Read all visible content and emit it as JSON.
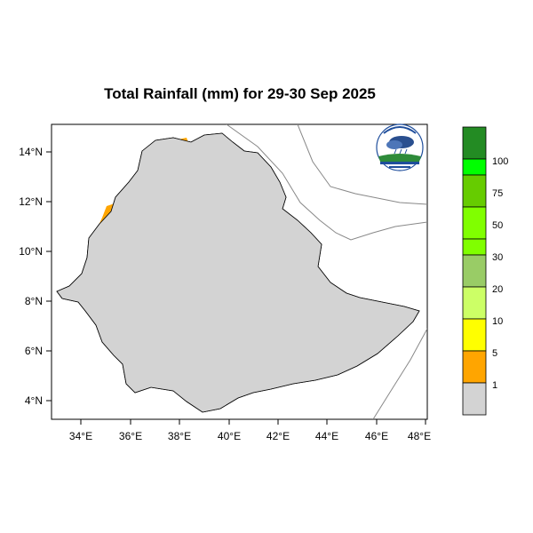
{
  "title": "Total Rainfall (mm) for 29-30 Sep 2025",
  "axes": {
    "y_ticks": [
      "14°N",
      "12°N",
      "10°N",
      "8°N",
      "6°N",
      "4°N"
    ],
    "x_ticks": [
      "34°E",
      "36°E",
      "38°E",
      "40°E",
      "42°E",
      "44°E",
      "46°E",
      "48°E"
    ]
  },
  "legend": {
    "labels": [
      "100",
      "75",
      "50",
      "30",
      "20",
      "10",
      "5",
      "1"
    ],
    "colors": [
      "#238b23",
      "#00ff00",
      "#66cc00",
      "#80ff00",
      "#99cc66",
      "#ccff66",
      "#ffff00",
      "#ffa500",
      "#d3d3d3"
    ]
  },
  "colors": {
    "land": "#d3d3d3",
    "border": "#000000",
    "coast": "#888888"
  },
  "logo_icon": "meteorology-agency-logo-icon"
}
